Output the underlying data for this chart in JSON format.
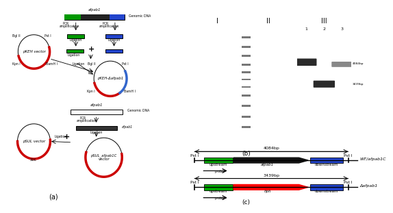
{
  "bg_color": "#ffffff",
  "panel_a_label": "(a)",
  "panel_b_label": "(b)",
  "panel_c_label": "(c)",
  "upstream_color": "#00bb00",
  "afpab1_color": "#111111",
  "hph_color": "#ff0000",
  "downstream_color": "#0000cc",
  "red_arc_color": "#cc0000",
  "blue_arc_color": "#3366cc",
  "wt_size": "4084bp",
  "mut_size": "3439bp",
  "wt_label": "WT/afpab1C",
  "mut_label": "Δafpab1"
}
